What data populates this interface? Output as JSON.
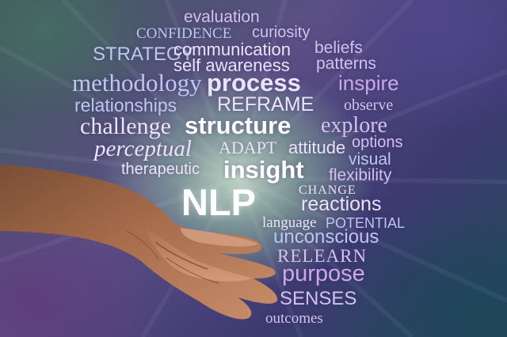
{
  "image": {
    "type": "word-cloud",
    "background": [
      "#3f5a5a",
      "#5b4f86",
      "#3d3a72",
      "#244a58"
    ],
    "center_glow": "#cfe8cf"
  },
  "words": {
    "evaluation": "evaluation",
    "confidence": "CONFIDENCE",
    "curiosity": "curiosity",
    "strategy": "STRATEGY",
    "communication": "communication",
    "beliefs": "beliefs",
    "self_awareness": "self awareness",
    "patterns": "patterns",
    "methodology": "methodology",
    "process": "process",
    "inspire": "inspire",
    "relationships": "relationships",
    "reframe": "REFRAME",
    "observe": "observe",
    "challenge": "challenge",
    "structure": "structure",
    "explore": "explore",
    "perceptual": "perceptual",
    "adapt": "ADAPT",
    "attitude": "attitude",
    "options": "options",
    "visual": "visual",
    "therapeutic": "therapeutic",
    "insight": "insight",
    "flexibility": "flexibility",
    "nlp": "NLP",
    "change": "CHANGE",
    "reactions": "reactions",
    "language": "language",
    "potential": "POTENTIAL",
    "unconscious": "unconscious",
    "relearn": "RELEARN",
    "purpose": "purpose",
    "senses": "SENSES",
    "outcomes": "outcomes"
  }
}
